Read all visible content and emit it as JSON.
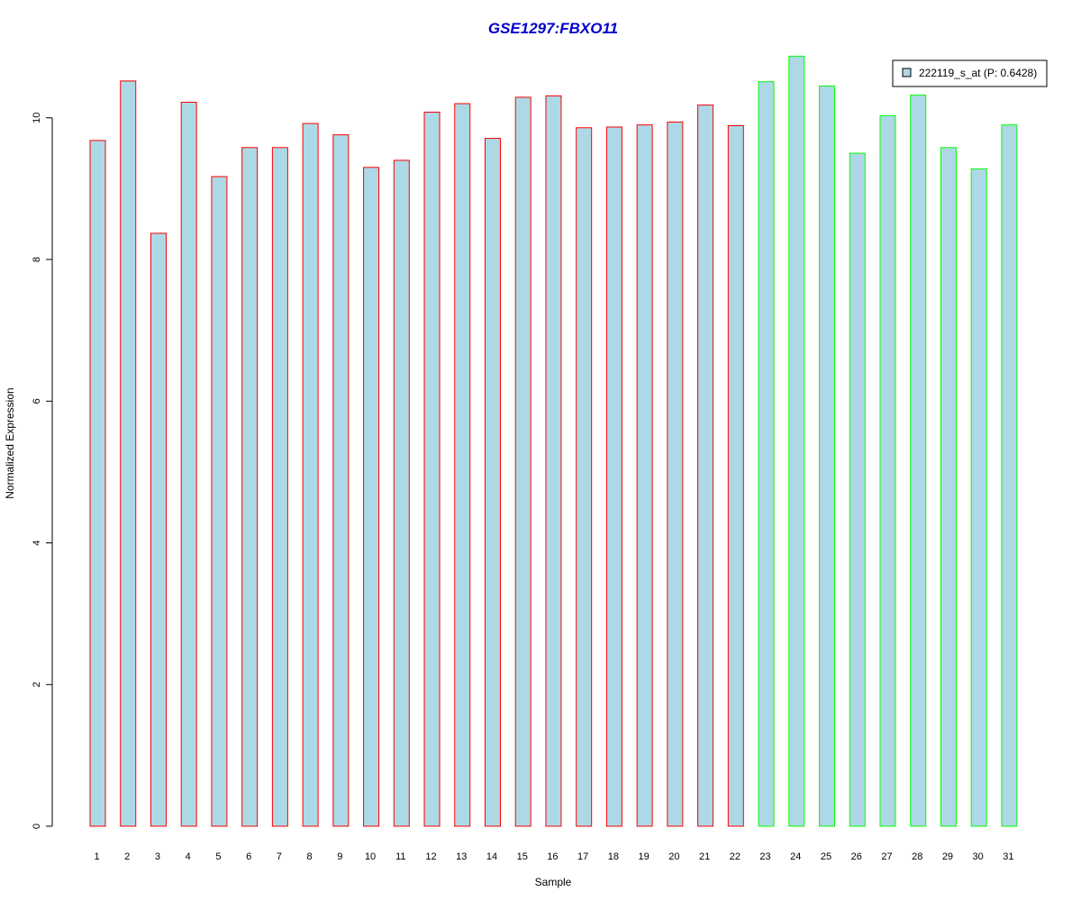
{
  "chart_data": {
    "type": "bar",
    "title": "GSE1297:FBXO11",
    "xlabel": "Sample",
    "ylabel": "Normalized Expression",
    "ylim": [
      0,
      10.9
    ],
    "yticks": [
      0,
      2,
      4,
      6,
      8,
      10
    ],
    "categories": [
      "1",
      "2",
      "3",
      "4",
      "5",
      "6",
      "7",
      "8",
      "9",
      "10",
      "11",
      "12",
      "13",
      "14",
      "15",
      "16",
      "17",
      "18",
      "19",
      "20",
      "21",
      "22",
      "23",
      "24",
      "25",
      "26",
      "27",
      "28",
      "29",
      "30",
      "31"
    ],
    "values": [
      9.68,
      10.52,
      8.37,
      10.22,
      9.17,
      9.58,
      9.58,
      9.92,
      9.76,
      9.3,
      9.4,
      10.08,
      10.2,
      9.71,
      10.29,
      10.31,
      9.86,
      9.87,
      9.9,
      9.94,
      10.18,
      9.89,
      10.51,
      10.87,
      10.45,
      9.5,
      10.03,
      10.32,
      9.58,
      9.28,
      9.9
    ],
    "groups": [
      "red",
      "red",
      "red",
      "red",
      "red",
      "red",
      "red",
      "red",
      "red",
      "red",
      "red",
      "red",
      "red",
      "red",
      "red",
      "red",
      "red",
      "red",
      "red",
      "red",
      "red",
      "red",
      "green",
      "green",
      "green",
      "green",
      "green",
      "green",
      "green",
      "green",
      "green"
    ],
    "legend": {
      "label": "222119_s_at (P: 0.6428)",
      "position": "top-right"
    },
    "colors": {
      "bar_fill": "#add8e6",
      "group_red": "#ff0000",
      "group_green": "#00ff00",
      "title": "#0000cc"
    },
    "grid": false
  }
}
